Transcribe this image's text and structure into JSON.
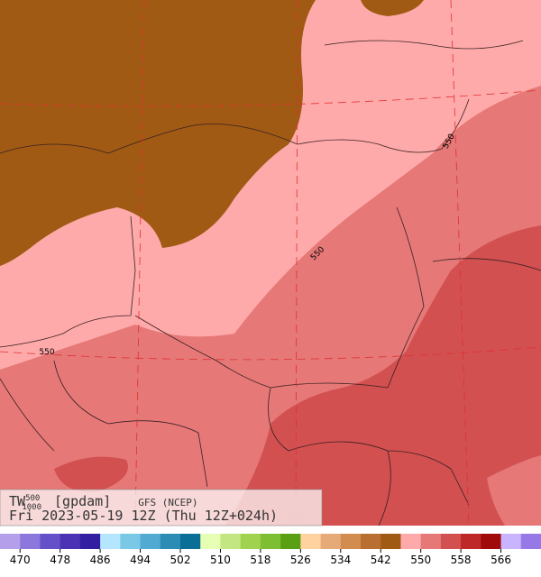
{
  "header": {
    "variable": "TW",
    "level_top": "500",
    "level_bottom": "1000",
    "units": "[gpdam]",
    "model": "GFS (NCEP)",
    "time": "Fri 2023-05-19 12Z (Thu 12Z+024h)"
  },
  "contour_labels": [
    "550",
    "550",
    "550"
  ],
  "colorbar": {
    "colors": [
      "#b4a0ea",
      "#8c78dc",
      "#6450c8",
      "#4b32b4",
      "#321ea0",
      "#b4e6ff",
      "#78c8e6",
      "#50aad2",
      "#2d8cb4",
      "#0a6e96",
      "#e6ffb4",
      "#c3e682",
      "#a0d250",
      "#7dbe32",
      "#5aa014",
      "#ffd2a0",
      "#e6aa78",
      "#d28c50",
      "#b96e32",
      "#a05a14",
      "#ffaaaa",
      "#e67878",
      "#d25050",
      "#be2828",
      "#a00a0a",
      "#c8b4ff",
      "#9678e6"
    ],
    "labels": [
      "470",
      "478",
      "486",
      "494",
      "502",
      "510",
      "518",
      "526",
      "534",
      "542",
      "550",
      "558",
      "566"
    ]
  }
}
